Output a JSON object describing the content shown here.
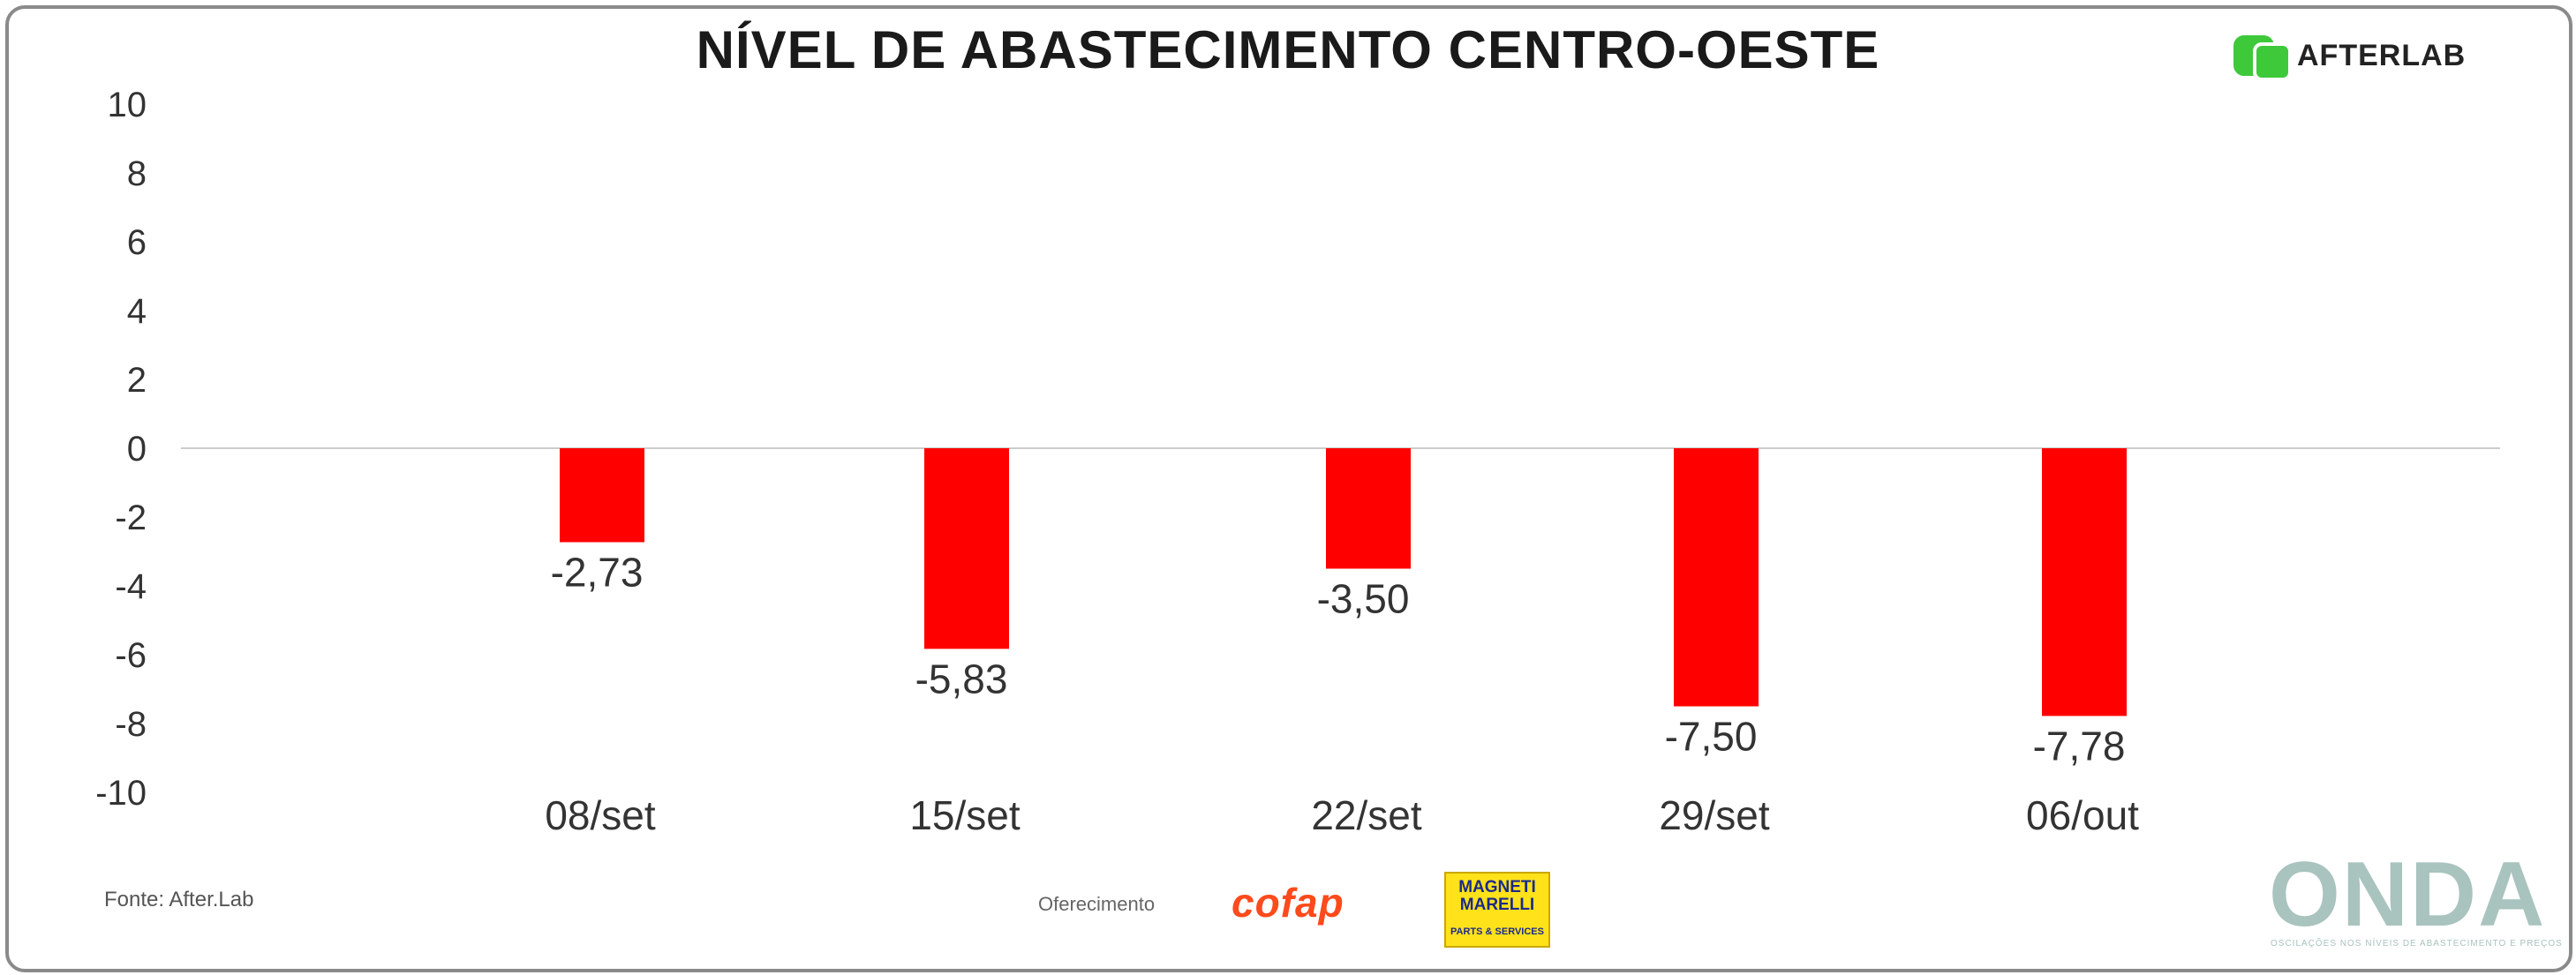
{
  "chart_data": {
    "type": "bar",
    "title": "NÍVEL DE ABASTECIMENTO CENTRO-OESTE",
    "categories": [
      "08/set",
      "15/set",
      "22/set",
      "29/set",
      "06/out"
    ],
    "values": [
      -2.73,
      -5.83,
      -3.5,
      -7.5,
      -7.78
    ],
    "data_labels": [
      "-2,73",
      "-5,83",
      "-3,50",
      "-7,50",
      "-7,78"
    ],
    "ylim": [
      -10,
      10
    ],
    "yticks": [
      10,
      8,
      6,
      4,
      2,
      0,
      -2,
      -4,
      -6,
      -8,
      -10
    ],
    "xlabel": "",
    "ylabel": "",
    "grid": false,
    "bar_color": "#ff0000"
  },
  "branding": {
    "afterlab": "AFTERLAB",
    "cofap": "cofap",
    "magneti_name": "MAGNETI MARELLI",
    "magneti_sub": "PARTS & SERVICES",
    "onda": "ONDA",
    "onda_tagline": "OSCILAÇÕES NOS NÍVEIS DE ABASTECIMENTO E PREÇOS",
    "afterlab_color": "#3ec93a",
    "cofap_color": "#ff4a1c",
    "onda_color": "#a9c3be"
  },
  "footer": {
    "source": "Fonte: After.Lab",
    "sponsor_label": "Oferecimento"
  }
}
